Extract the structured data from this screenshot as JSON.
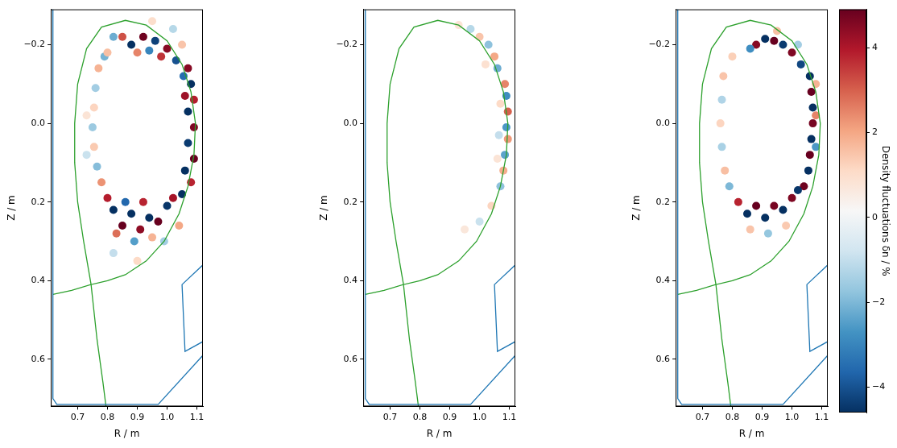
{
  "chart_data": [
    {
      "type": "scatter",
      "xlabel": "R / m",
      "ylabel": "Z / m",
      "xlim": [
        0.61,
        1.12
      ],
      "ylim": [
        0.72,
        -0.29
      ],
      "xticks": [
        0.7,
        0.8,
        0.9,
        {
          "value": 1,
          "label": "1.0"
        },
        1.1
      ],
      "yticks": [
        {
          "value": -0.2,
          "label": "−0.2"
        },
        {
          "value": 0,
          "label": "0.0"
        },
        0.2,
        0.4,
        0.6
      ],
      "grid": false,
      "series": [
        {
          "type": "line",
          "color": "#1f77b4",
          "line_style": "solid",
          "x": [
            0.617,
            0.617,
            0.63,
            0.97,
            1.12
          ],
          "values": [
            -0.29,
            0.7,
            0.715,
            0.715,
            0.59
          ]
        },
        {
          "type": "line",
          "color": "#1f77b4",
          "line_style": "solid",
          "x": [
            1.12,
            1.05,
            1.06,
            1.12
          ],
          "values": [
            0.36,
            0.41,
            0.58,
            0.555
          ]
        },
        {
          "type": "line",
          "color": "#2ca02c",
          "line_style": "solid",
          "x": [
            0.617,
            0.68,
            0.745,
            0.72,
            0.7,
            0.69,
            0.69,
            0.7,
            0.73,
            0.78,
            0.86,
            0.93,
            1.0,
            1.05,
            1.08,
            1.095,
            1.09,
            1.07,
            1.04,
            0.99,
            0.93,
            0.86,
            0.8,
            0.745,
            0.765,
            0.785,
            0.795
          ],
          "values": [
            0.435,
            0.425,
            0.41,
            0.3,
            0.2,
            0.1,
            0.0,
            -0.1,
            -0.19,
            -0.245,
            -0.262,
            -0.25,
            -0.21,
            -0.15,
            -0.08,
            0.0,
            0.08,
            0.16,
            0.23,
            0.3,
            0.35,
            0.385,
            0.4,
            0.41,
            0.55,
            0.66,
            0.72
          ]
        },
        {
          "type": "scatter",
          "marker": "circle",
          "x": [
            1.07,
            1.08,
            1.09,
            1.07,
            1.09,
            1.07,
            1.09,
            1.06,
            1.08,
            1.05,
            1.055,
            1.06,
            0.88,
            0.92,
            0.96,
            1.0,
            1.03,
            0.85,
            0.9,
            0.94,
            0.98,
            0.82,
            0.85,
            0.88,
            0.91,
            0.94,
            0.97,
            1.0,
            1.02,
            0.83,
            0.89,
            0.95,
            0.8,
            0.86,
            0.92,
            0.77,
            0.76,
            0.755,
            0.75,
            0.755,
            0.765,
            0.78,
            0.79,
            0.73,
            0.73,
            0.82,
            0.8,
            1.05,
            1.02,
            0.95,
            0.99,
            1.04,
            0.9,
            0.82
          ],
          "values": [
            -0.14,
            -0.1,
            -0.06,
            -0.03,
            0.01,
            0.05,
            0.09,
            0.12,
            0.15,
            0.18,
            -0.12,
            -0.07,
            -0.2,
            -0.22,
            -0.21,
            -0.19,
            -0.16,
            -0.22,
            -0.18,
            -0.185,
            -0.17,
            0.22,
            0.26,
            0.23,
            0.27,
            0.24,
            0.25,
            0.21,
            0.19,
            0.28,
            0.3,
            0.29,
            0.19,
            0.2,
            0.2,
            -0.14,
            -0.09,
            -0.04,
            0.01,
            0.06,
            0.11,
            0.15,
            -0.17,
            -0.02,
            0.08,
            -0.22,
            -0.18,
            -0.2,
            -0.24,
            -0.26,
            0.3,
            0.26,
            0.35,
            0.33
          ],
          "density_fluctuation": [
            4.5,
            -4.8,
            3.9,
            -5.2,
            4.6,
            -4.4,
            5.0,
            -4.7,
            3.8,
            -4.9,
            -3.5,
            4.2,
            -4.6,
            4.8,
            -4.3,
            4.5,
            -4.0,
            3.2,
            2.5,
            -3.0,
            3.6,
            -4.7,
            4.9,
            -5.1,
            4.4,
            -4.8,
            5.0,
            -4.5,
            4.1,
            2.8,
            -2.5,
            1.8,
            3.9,
            -3.6,
            3.8,
            1.8,
            -1.5,
            1.2,
            -1.6,
            1.4,
            -1.9,
            2.3,
            -2.1,
            0.8,
            -0.9,
            -2.2,
            1.6,
            1.5,
            -1.2,
            1.0,
            -1.5,
            2.0,
            1.1,
            -1.0
          ]
        }
      ]
    },
    {
      "type": "scatter",
      "xlabel": "R / m",
      "ylabel": "Z / m",
      "xlim": [
        0.61,
        1.12
      ],
      "ylim": [
        0.72,
        -0.29
      ],
      "xticks": [
        0.7,
        0.8,
        0.9,
        {
          "value": 1,
          "label": "1.0"
        },
        1.1
      ],
      "yticks": [
        {
          "value": -0.2,
          "label": "−0.2"
        },
        {
          "value": 0,
          "label": "0.0"
        },
        0.2,
        0.4,
        0.6
      ],
      "grid": false,
      "series": [
        {
          "type": "line",
          "color": "#1f77b4",
          "line_style": "solid",
          "x": [
            0.617,
            0.617,
            0.63,
            0.97,
            1.12
          ],
          "values": [
            -0.29,
            0.7,
            0.715,
            0.715,
            0.59
          ]
        },
        {
          "type": "line",
          "color": "#1f77b4",
          "line_style": "solid",
          "x": [
            1.12,
            1.05,
            1.06,
            1.12
          ],
          "values": [
            0.36,
            0.41,
            0.58,
            0.555
          ]
        },
        {
          "type": "line",
          "color": "#2ca02c",
          "line_style": "solid",
          "x": [
            0.617,
            0.68,
            0.745,
            0.72,
            0.7,
            0.69,
            0.69,
            0.7,
            0.73,
            0.78,
            0.86,
            0.93,
            1.0,
            1.05,
            1.08,
            1.095,
            1.09,
            1.07,
            1.04,
            0.99,
            0.93,
            0.86,
            0.8,
            0.745,
            0.765,
            0.785,
            0.795
          ],
          "values": [
            0.435,
            0.425,
            0.41,
            0.3,
            0.2,
            0.1,
            0.0,
            -0.1,
            -0.19,
            -0.245,
            -0.262,
            -0.25,
            -0.21,
            -0.15,
            -0.08,
            0.0,
            0.08,
            0.16,
            0.23,
            0.3,
            0.35,
            0.385,
            0.4,
            0.41,
            0.55,
            0.66,
            0.72
          ]
        },
        {
          "type": "scatter",
          "marker": "circle",
          "x": [
            1.085,
            1.09,
            1.095,
            1.09,
            1.095,
            1.085,
            1.08,
            1.07,
            1.06,
            1.05,
            1.03,
            1.0,
            0.97,
            1.07,
            1.065,
            1.04,
            1.0,
            0.95,
            0.93,
            1.02,
            1.06
          ],
          "values": [
            -0.1,
            -0.07,
            -0.03,
            0.01,
            0.04,
            0.08,
            0.12,
            0.16,
            -0.14,
            -0.17,
            -0.2,
            -0.22,
            -0.24,
            -0.05,
            0.03,
            0.21,
            0.25,
            0.27,
            -0.25,
            -0.15,
            0.09
          ],
          "density_fluctuation": [
            2.5,
            -2.8,
            3.0,
            -2.6,
            2.2,
            -2.4,
            1.9,
            -1.8,
            -2.2,
            2.0,
            -1.8,
            1.5,
            -1.2,
            1.1,
            -1.0,
            1.2,
            -0.9,
            0.7,
            0.8,
            0.9,
            0.8
          ]
        }
      ]
    },
    {
      "type": "scatter",
      "xlabel": "R / m",
      "ylabel": "Z / m",
      "xlim": [
        0.61,
        1.12
      ],
      "ylim": [
        0.72,
        -0.29
      ],
      "xticks": [
        0.7,
        0.8,
        0.9,
        {
          "value": 1,
          "label": "1.0"
        },
        1.1
      ],
      "yticks": [
        {
          "value": -0.2,
          "label": "−0.2"
        },
        {
          "value": 0,
          "label": "0.0"
        },
        0.2,
        0.4,
        0.6
      ],
      "grid": false,
      "series": [
        {
          "type": "line",
          "color": "#1f77b4",
          "line_style": "solid",
          "x": [
            0.617,
            0.617,
            0.63,
            0.97,
            1.12
          ],
          "values": [
            -0.29,
            0.7,
            0.715,
            0.715,
            0.59
          ]
        },
        {
          "type": "line",
          "color": "#1f77b4",
          "line_style": "solid",
          "x": [
            1.12,
            1.05,
            1.06,
            1.12
          ],
          "values": [
            0.36,
            0.41,
            0.58,
            0.555
          ]
        },
        {
          "type": "line",
          "color": "#2ca02c",
          "line_style": "solid",
          "x": [
            0.617,
            0.68,
            0.745,
            0.72,
            0.7,
            0.69,
            0.69,
            0.7,
            0.73,
            0.78,
            0.86,
            0.93,
            1.0,
            1.05,
            1.08,
            1.095,
            1.09,
            1.07,
            1.04,
            0.99,
            0.93,
            0.86,
            0.8,
            0.745,
            0.765,
            0.785,
            0.795
          ],
          "values": [
            0.435,
            0.425,
            0.41,
            0.3,
            0.2,
            0.1,
            0.0,
            -0.1,
            -0.19,
            -0.245,
            -0.262,
            -0.25,
            -0.21,
            -0.15,
            -0.08,
            0.0,
            0.08,
            0.16,
            0.23,
            0.3,
            0.35,
            0.385,
            0.4,
            0.41,
            0.55,
            0.66,
            0.72
          ]
        },
        {
          "type": "scatter",
          "marker": "circle",
          "x": [
            1.06,
            1.065,
            1.07,
            1.07,
            1.065,
            1.06,
            1.055,
            1.04,
            1.08,
            1.08,
            1.08,
            0.88,
            0.91,
            0.94,
            0.97,
            1.0,
            1.03,
            0.86,
            0.95,
            1.02,
            0.82,
            0.85,
            0.88,
            0.91,
            0.94,
            0.97,
            1.0,
            1.02,
            0.86,
            0.92,
            0.98,
            0.77,
            0.765,
            0.76,
            0.765,
            0.775,
            0.79,
            0.8
          ],
          "values": [
            -0.12,
            -0.08,
            -0.04,
            0.0,
            0.04,
            0.08,
            0.12,
            0.16,
            -0.02,
            0.06,
            -0.1,
            -0.2,
            -0.215,
            -0.21,
            -0.2,
            -0.18,
            -0.15,
            -0.19,
            -0.235,
            -0.2,
            0.2,
            0.23,
            0.21,
            0.24,
            0.21,
            0.22,
            0.19,
            0.17,
            0.27,
            0.28,
            0.26,
            -0.12,
            -0.06,
            0.0,
            0.06,
            0.12,
            0.16,
            -0.17
          ],
          "density_fluctuation": [
            -4.8,
            4.9,
            -5.0,
            4.7,
            -4.9,
            5.0,
            -4.6,
            4.8,
            2.5,
            -2.6,
            1.8,
            4.5,
            -4.7,
            4.9,
            -4.4,
            4.6,
            -4.2,
            -2.8,
            1.6,
            -1.5,
            3.8,
            -4.9,
            5.0,
            -4.8,
            4.7,
            -5.0,
            4.6,
            -4.5,
            1.5,
            -1.7,
            1.4,
            1.5,
            -1.3,
            1.2,
            -1.4,
            1.6,
            -2.0,
            1.3
          ]
        }
      ]
    }
  ],
  "colorbar": {
    "label": "Density fluctuations δn / %",
    "range": [
      -4.6,
      4.9
    ],
    "ticks": [
      {
        "value": -4,
        "label": "−4"
      },
      {
        "value": -2,
        "label": "−2"
      },
      0,
      2,
      4
    ]
  }
}
